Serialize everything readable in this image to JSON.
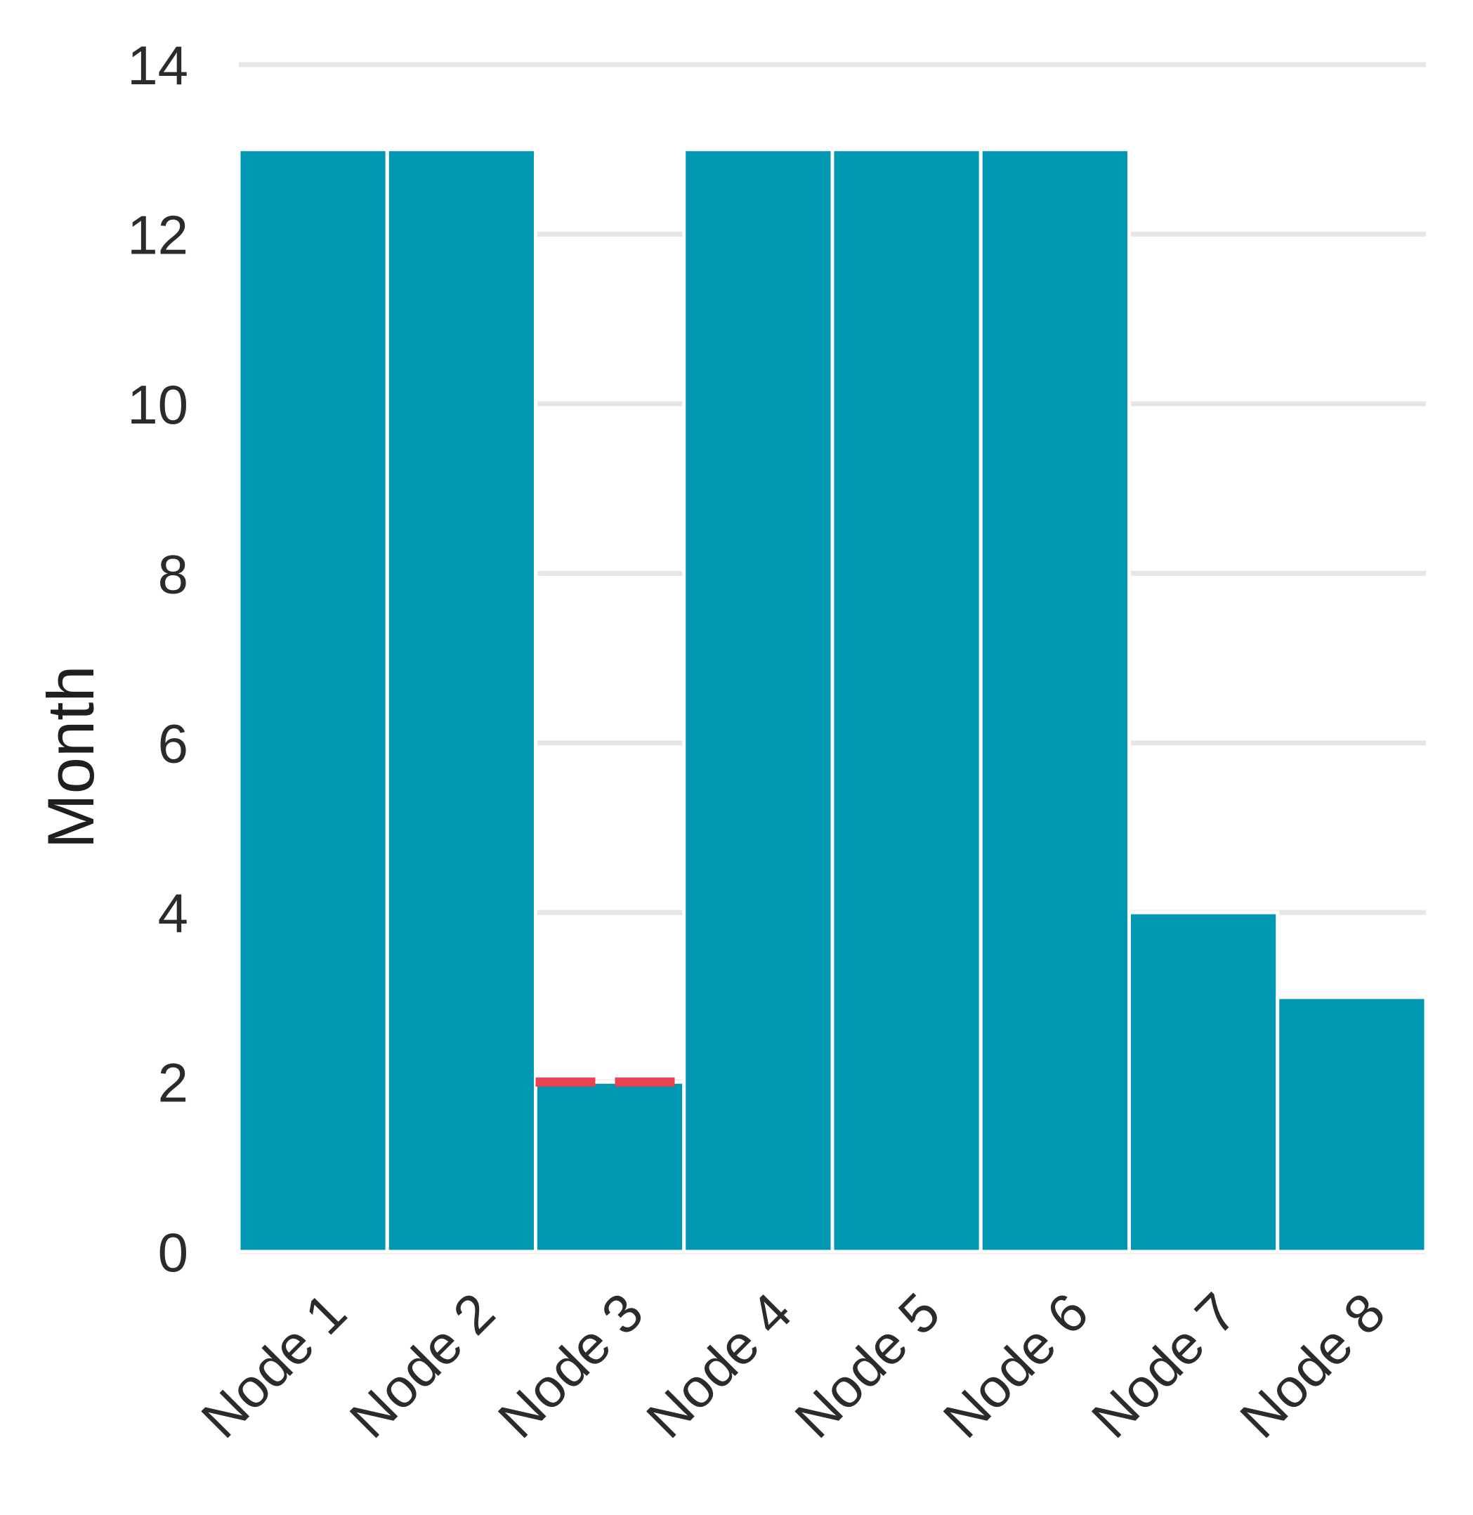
{
  "chart_data": {
    "type": "bar",
    "categories": [
      "Node 1",
      "Node 2",
      "Node 3",
      "Node 4",
      "Node 5",
      "Node 6",
      "Node 7",
      "Node 8"
    ],
    "values": [
      13,
      13,
      2,
      13,
      13,
      13,
      4,
      3
    ],
    "title": "",
    "xlabel": "",
    "ylabel": "Month",
    "ylim": [
      0,
      14
    ],
    "yticks": [
      "0",
      "2",
      "4",
      "6",
      "8",
      "10",
      "12",
      "14"
    ],
    "grid": true,
    "legend": "none",
    "reference_marker": {
      "category": "Node 3",
      "value": 2,
      "style": "dashed"
    },
    "colors": {
      "bar": "#0097b2",
      "grid": "#e6e6e6",
      "marker": "#e8434f"
    }
  }
}
